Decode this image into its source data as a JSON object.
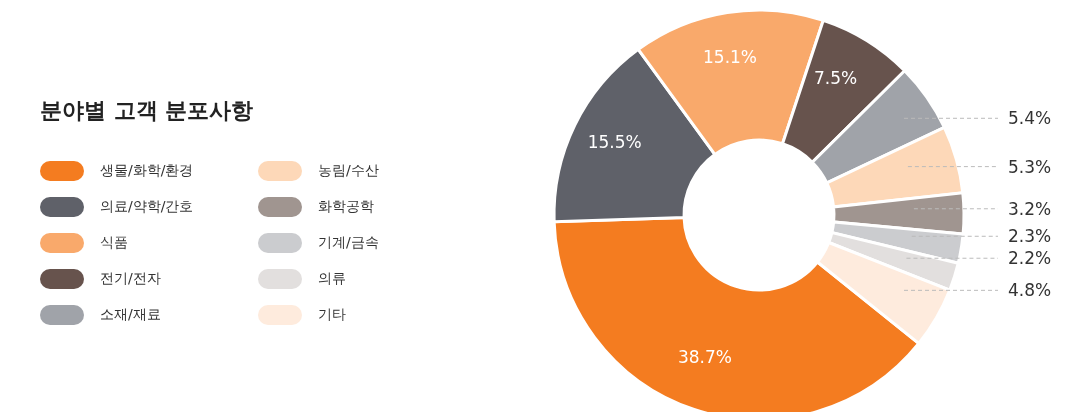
{
  "chart_data": {
    "type": "donut",
    "title": "분야별 고객 분포사항",
    "categories": [
      "생물/화학/환경",
      "의료/약학/간호",
      "식품",
      "전기/전자",
      "소재/재료",
      "농림/수산",
      "화학공학",
      "기계/금속",
      "의류",
      "기타"
    ],
    "values": [
      38.7,
      15.5,
      15.1,
      7.5,
      5.4,
      5.3,
      3.2,
      2.3,
      2.2,
      4.8
    ],
    "value_labels": [
      "38.7%",
      "15.5%",
      "15.1%",
      "7.5%",
      "5.4%",
      "5.3%",
      "3.2%",
      "2.3%",
      "2.2%",
      "4.8%"
    ],
    "colors": [
      "#f47c20",
      "#5f6169",
      "#f9a96b",
      "#67534d",
      "#a0a3a9",
      "#fdd8b8",
      "#a09590",
      "#cbcccf",
      "#e2dfde",
      "#feebdd"
    ],
    "legend": "left"
  }
}
